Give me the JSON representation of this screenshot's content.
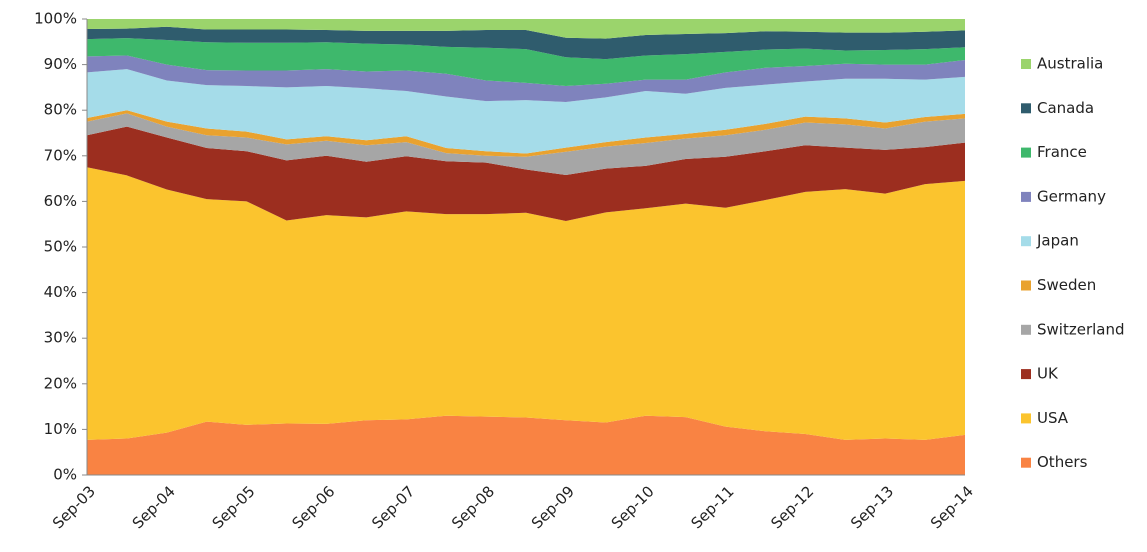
{
  "chart_data": {
    "type": "stacked-area",
    "categories": [
      "Sep-03",
      null,
      "Sep-04",
      null,
      "Sep-05",
      null,
      "Sep-06",
      null,
      "Sep-07",
      null,
      "Sep-08",
      null,
      "Sep-09",
      null,
      "Sep-10",
      null,
      "Sep-11",
      null,
      "Sep-12",
      null,
      "Sep-13",
      null,
      "Sep-14"
    ],
    "ylim": [
      0,
      100
    ],
    "yticks": [
      {
        "value": 0,
        "label": "0%"
      },
      {
        "value": 10,
        "label": "10%"
      },
      {
        "value": 20,
        "label": "20%"
      },
      {
        "value": 30,
        "label": "30%"
      },
      {
        "value": 40,
        "label": "40%"
      },
      {
        "value": 50,
        "label": "50%"
      },
      {
        "value": 60,
        "label": "60%"
      },
      {
        "value": 70,
        "label": "70%"
      },
      {
        "value": 80,
        "label": "80%"
      },
      {
        "value": 90,
        "label": "90%"
      },
      {
        "value": 100,
        "label": "100%"
      }
    ],
    "legend": "right",
    "series": [
      {
        "name": "Others",
        "color": "#f98343",
        "values": [
          7.7,
          8,
          9.3,
          11.7,
          11,
          11.3,
          11.2,
          12,
          12.2,
          13,
          12.8,
          12.6,
          12,
          11.5,
          13,
          12.7,
          10.6,
          9.6,
          9,
          7.7,
          8,
          7.7,
          8.8
        ]
      },
      {
        "name": "USA",
        "color": "#fbc42e",
        "values": [
          59.8,
          57.7,
          53.3,
          48.8,
          49,
          44.5,
          45.8,
          44.5,
          45.6,
          44.2,
          44.4,
          44.9,
          43.7,
          46.1,
          45.5,
          46.8,
          48,
          50.7,
          53.1,
          55,
          53.7,
          56.1,
          55.7
        ]
      },
      {
        "name": "UK",
        "color": "#9c2e1f",
        "values": [
          7,
          10.7,
          11.4,
          11.2,
          11,
          13.2,
          13,
          12.2,
          12.1,
          11.6,
          11.3,
          9.5,
          10.1,
          9.6,
          9.3,
          9.8,
          11.2,
          10.7,
          10.2,
          9.1,
          9.6,
          8.1,
          8.4
        ]
      },
      {
        "name": "Switzerland",
        "color": "#a6a6a6",
        "values": [
          3,
          2.9,
          2.4,
          2.8,
          3,
          3.5,
          3.3,
          3.6,
          3.1,
          1.8,
          1.5,
          2.8,
          5.1,
          4.8,
          5,
          4.5,
          4.7,
          4.7,
          5,
          5.1,
          4.7,
          5.6,
          5.3
        ]
      },
      {
        "name": "Sweden",
        "color": "#e9a22f",
        "values": [
          0.8,
          0.7,
          1.1,
          1.5,
          1.3,
          1.1,
          1,
          1.1,
          1.3,
          1.1,
          1,
          0.7,
          0.9,
          1,
          1.2,
          1,
          1.2,
          1.3,
          1.3,
          1.3,
          1.3,
          1,
          1
        ]
      },
      {
        "name": "Japan",
        "color": "#a5dce9",
        "values": [
          10,
          9,
          9,
          9.5,
          10,
          11.4,
          11,
          11.4,
          9.9,
          11.3,
          11,
          11.7,
          10,
          9.8,
          10.2,
          8.8,
          9.2,
          8.6,
          7.7,
          8.7,
          9.6,
          8.2,
          8.1
        ]
      },
      {
        "name": "Germany",
        "color": "#7f83bd",
        "values": [
          3.5,
          3,
          3.5,
          3.3,
          3.4,
          3.7,
          3.7,
          3.7,
          4.5,
          5,
          4.5,
          3.8,
          3.5,
          3,
          2.5,
          3.1,
          3.4,
          3.7,
          3.4,
          3.3,
          3.1,
          3.3,
          3.7
        ]
      },
      {
        "name": "France",
        "color": "#3eb86c",
        "values": [
          3.8,
          3.8,
          5.4,
          6.1,
          6.1,
          6.1,
          5.9,
          6.1,
          5.7,
          5.9,
          7.2,
          7.4,
          6.3,
          5.4,
          5.3,
          5.6,
          4.5,
          4,
          3.8,
          2.9,
          3.2,
          3.4,
          2.8
        ]
      },
      {
        "name": "Canada",
        "color": "#2f5c6d",
        "values": [
          2.2,
          2.1,
          2.9,
          2.8,
          2.9,
          2.9,
          2.7,
          2.8,
          3,
          3.5,
          3.9,
          4.2,
          4.3,
          4.5,
          4.5,
          4.4,
          4.1,
          4,
          3.7,
          3.9,
          3.8,
          3.8,
          3.7
        ]
      },
      {
        "name": "Australia",
        "color": "#9bd46c",
        "values": [
          2.2,
          2.1,
          1.7,
          2.3,
          2.3,
          2.3,
          2.4,
          2.6,
          2.6,
          2.6,
          2.4,
          2.4,
          4.1,
          4.3,
          3.5,
          3.3,
          3.1,
          2.7,
          2.8,
          3,
          3,
          2.8,
          2.5
        ]
      }
    ]
  }
}
